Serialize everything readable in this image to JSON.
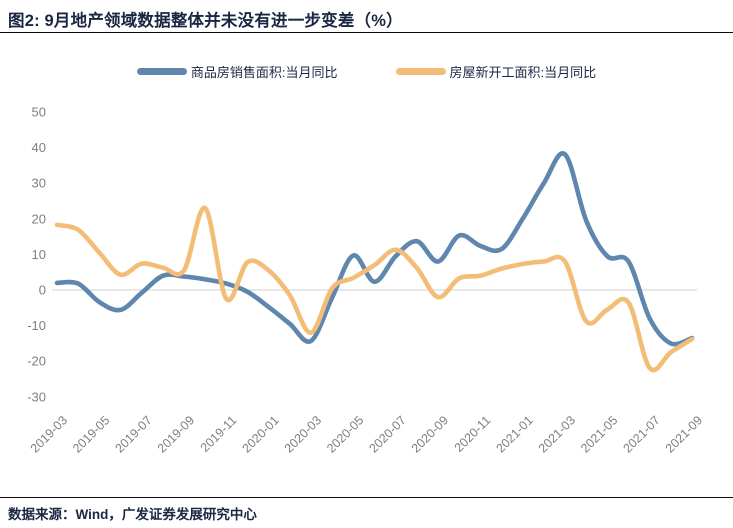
{
  "header": {
    "title": "图2: 9月地产领域数据整体并未没有进一步变差（%）"
  },
  "legend": [
    {
      "label": "商品房销售面积:当月同比",
      "color": "#5F86AD"
    },
    {
      "label": "房屋新开工面积:当月同比",
      "color": "#F3BD77"
    }
  ],
  "footer": {
    "source": "数据来源：Wind，广发证券发展研究中心"
  },
  "colors": {
    "title_text": "#1A2742",
    "axis_text": "#7F7F7F",
    "zero_line": "#D9D9D9",
    "rule": "#0A0A0A",
    "background": "#FFFFFF",
    "sales_line": "#5F86AD",
    "starts_line": "#F3BD77"
  },
  "chart_data": {
    "type": "line",
    "title": "9月地产领域数据整体并未没有进一步变差（%）",
    "line_style": "smooth",
    "grid": "zero-line-only",
    "legend_position": "top",
    "xlabel": "",
    "ylabel": "",
    "ylim": [
      -30,
      50
    ],
    "ytick_step": 10,
    "xtick_every": 2,
    "x": [
      "2019-03",
      "2019-04",
      "2019-05",
      "2019-06",
      "2019-07",
      "2019-08",
      "2019-09",
      "2019-10",
      "2019-11",
      "2019-12",
      "2020-01",
      "2020-02",
      "2020-03",
      "2020-04",
      "2020-05",
      "2020-06",
      "2020-07",
      "2020-08",
      "2020-09",
      "2020-10",
      "2020-11",
      "2020-12",
      "2021-01",
      "2021-02",
      "2021-03",
      "2021-04",
      "2021-05",
      "2021-06",
      "2021-07",
      "2021-08",
      "2021-09"
    ],
    "series": [
      {
        "name": "商品房销售面积:当月同比",
        "color": "#5F86AD",
        "values": [
          2.0,
          1.8,
          -3.4,
          -5.6,
          -0.8,
          4.0,
          3.8,
          3.0,
          1.8,
          -0.5,
          -4.8,
          -9.5,
          -14.3,
          -2.1,
          9.7,
          2.3,
          9.5,
          13.7,
          8.0,
          15.3,
          12.4,
          11.5,
          20.0,
          30.0,
          38.1,
          19.5,
          9.5,
          8.0,
          -8.0,
          -15.0,
          -13.5
        ]
      },
      {
        "name": "房屋新开工面积:当月同比",
        "color": "#F3BD77",
        "values": [
          18.3,
          16.9,
          10.5,
          4.3,
          7.4,
          6.3,
          5.5,
          23.0,
          -2.5,
          7.8,
          5.5,
          -1.5,
          -12.0,
          0.5,
          3.4,
          7.0,
          11.3,
          6.2,
          -2.0,
          3.3,
          4.0,
          6.0,
          7.3,
          8.0,
          8.0,
          -8.8,
          -5.5,
          -3.5,
          -21.9,
          -17.5,
          -13.8
        ]
      }
    ]
  }
}
